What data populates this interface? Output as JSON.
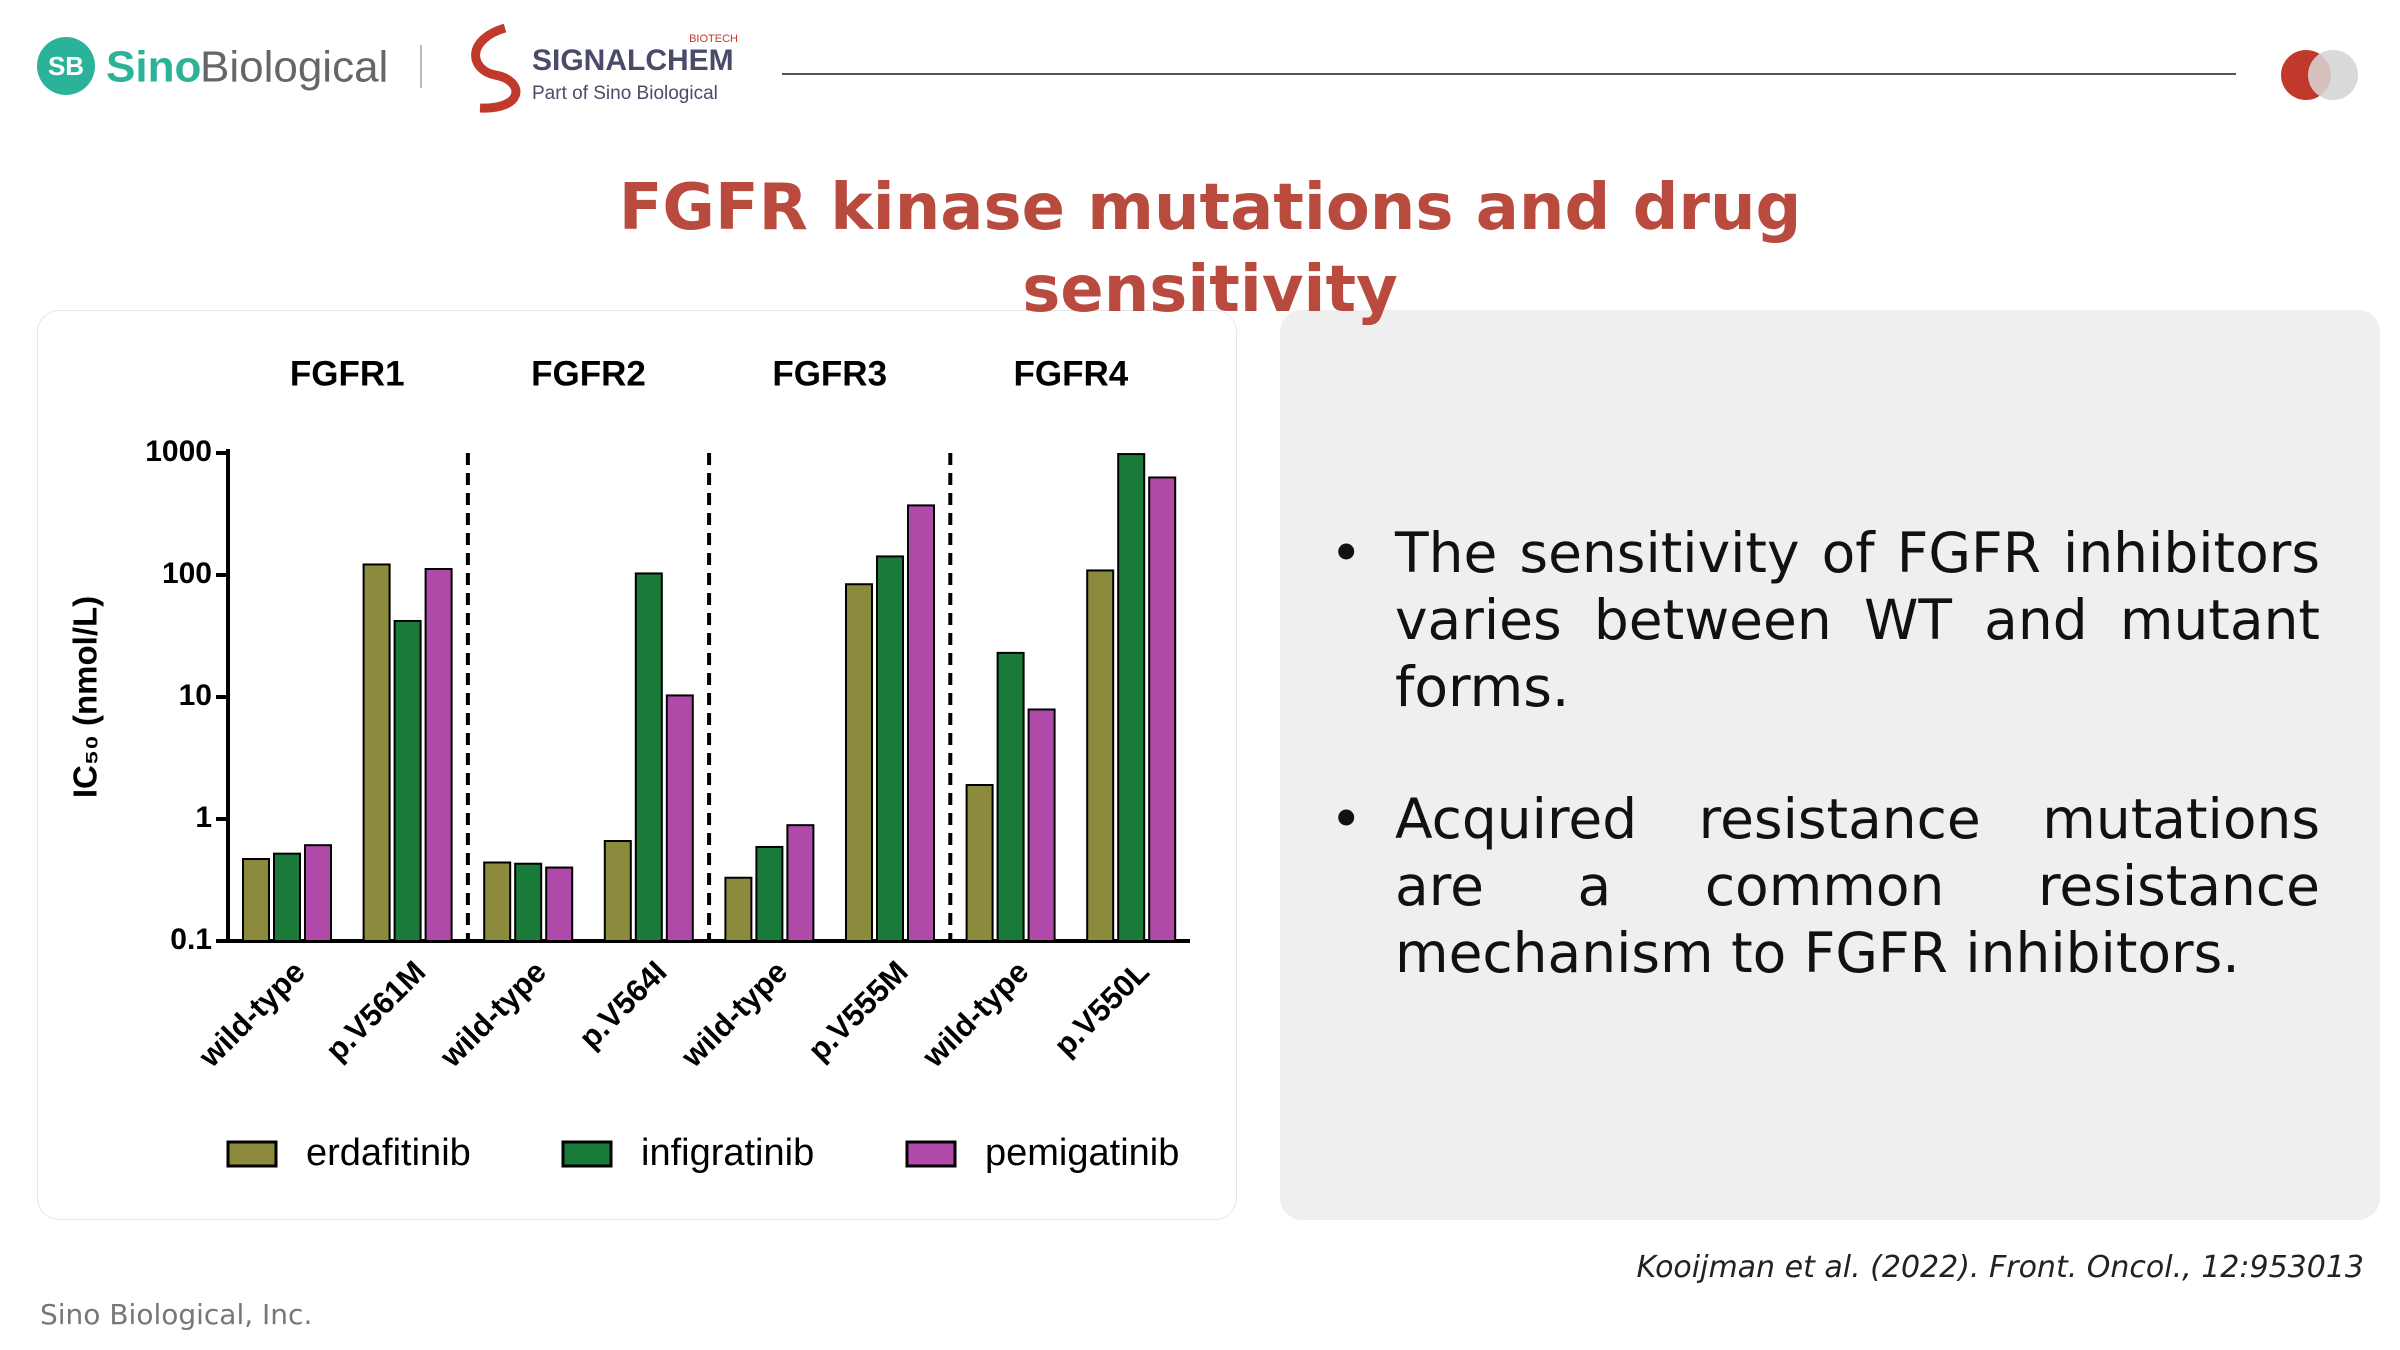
{
  "header": {
    "logo_badge": "SB",
    "brand_a": "Sino",
    "brand_b": "Biological",
    "partner": "SIGNALCHEM",
    "partner_tag": "BIOTECH",
    "partner_sub": "Part of Sino Biological"
  },
  "title": "FGFR kinase mutations and drug sensitivity",
  "chart_data": {
    "type": "bar",
    "groups": [
      "FGFR1",
      "FGFR2",
      "FGFR3",
      "FGFR4"
    ],
    "categories": [
      "wild-type",
      "p.V561M",
      "wild-type",
      "p.V564I",
      "wild-type",
      "p.V555M",
      "wild-type",
      "p.V550L"
    ],
    "y_label": "IC₅₀ (nmol/L)",
    "log_scale": true,
    "ylim": [
      0.1,
      1000
    ],
    "yticks": [
      0.1,
      1,
      10,
      100,
      1000
    ],
    "series": [
      {
        "name": "erdafitinib",
        "color": "#8c8a3c",
        "values": [
          0.47,
          122,
          0.44,
          0.66,
          0.33,
          84,
          1.9,
          109
        ]
      },
      {
        "name": "infigratinib",
        "color": "#1a7a3a",
        "values": [
          0.52,
          42,
          0.43,
          103,
          0.59,
          142,
          23,
          980
        ]
      },
      {
        "name": "pemigatinib",
        "color": "#b04aa8",
        "values": [
          0.61,
          112,
          0.4,
          10.3,
          0.89,
          372,
          7.9,
          630
        ]
      }
    ]
  },
  "bullets": [
    "The sensitivity of FGFR inhibitors varies between WT and mutant forms.",
    "Acquired resistance mutations are a common resistance mechanism to FGFR inhibitors."
  ],
  "citation": "Kooijman et al. (2022). Front. Oncol., 12:953013",
  "footer": "Sino Biological, Inc."
}
